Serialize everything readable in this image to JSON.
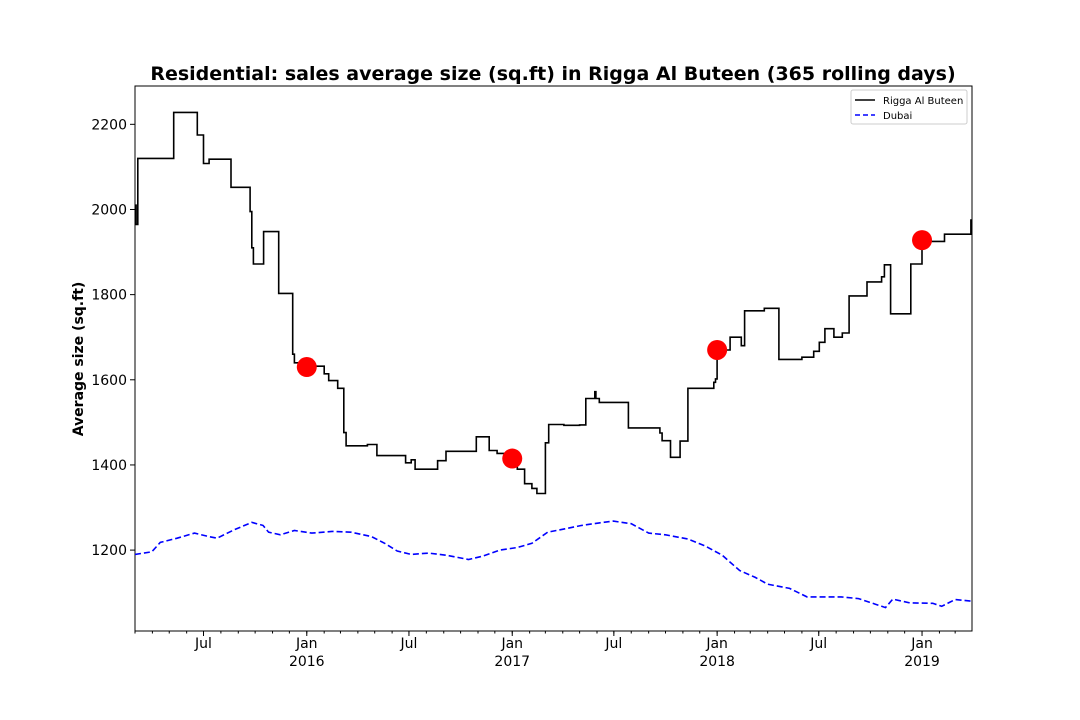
{
  "chart_data": {
    "type": "line",
    "title": "Residential: sales average size (sq.ft) in Rigga Al Buteen (365 rolling days)",
    "xlabel": "",
    "ylabel": "Average size (sq.ft)",
    "xlim": [
      "2015-03-01",
      "2019-03-31"
    ],
    "ylim": [
      1010,
      2290
    ],
    "yticks": [
      1200,
      1400,
      1600,
      1800,
      2000,
      2200
    ],
    "xticks": [
      {
        "date": "2015-07-01",
        "label": "Jul",
        "sublabel": ""
      },
      {
        "date": "2016-01-01",
        "label": "Jan",
        "sublabel": "2016"
      },
      {
        "date": "2016-07-01",
        "label": "Jul",
        "sublabel": ""
      },
      {
        "date": "2017-01-01",
        "label": "Jan",
        "sublabel": "2017"
      },
      {
        "date": "2017-07-01",
        "label": "Jul",
        "sublabel": ""
      },
      {
        "date": "2018-01-01",
        "label": "Jan",
        "sublabel": "2018"
      },
      {
        "date": "2018-07-01",
        "label": "Jul",
        "sublabel": ""
      },
      {
        "date": "2019-01-01",
        "label": "Jan",
        "sublabel": "2019"
      }
    ],
    "legend_position": "top-right",
    "grid": false,
    "series": [
      {
        "name": "Rigga Al Buteen",
        "color": "#000000",
        "style": "solid",
        "step": true,
        "points": [
          [
            "2015-03-01",
            2010
          ],
          [
            "2015-03-03",
            1965
          ],
          [
            "2015-03-06",
            2120
          ],
          [
            "2015-05-09",
            2228
          ],
          [
            "2015-06-20",
            2175
          ],
          [
            "2015-07-01",
            2108
          ],
          [
            "2015-07-11",
            2118
          ],
          [
            "2015-08-19",
            2052
          ],
          [
            "2015-09-22",
            1995
          ],
          [
            "2015-09-25",
            1910
          ],
          [
            "2015-09-28",
            1872
          ],
          [
            "2015-10-16",
            1948
          ],
          [
            "2015-11-12",
            1803
          ],
          [
            "2015-12-07",
            1660
          ],
          [
            "2015-12-10",
            1640
          ],
          [
            "2015-12-19",
            1632
          ],
          [
            "2016-02-01",
            1614
          ],
          [
            "2016-02-09",
            1598
          ],
          [
            "2016-02-25",
            1580
          ],
          [
            "2016-03-07",
            1476
          ],
          [
            "2016-03-11",
            1445
          ],
          [
            "2016-04-18",
            1448
          ],
          [
            "2016-05-05",
            1422
          ],
          [
            "2016-06-25",
            1405
          ],
          [
            "2016-07-05",
            1412
          ],
          [
            "2016-07-12",
            1390
          ],
          [
            "2016-08-21",
            1410
          ],
          [
            "2016-09-05",
            1432
          ],
          [
            "2016-10-29",
            1466
          ],
          [
            "2016-11-21",
            1434
          ],
          [
            "2016-12-05",
            1427
          ],
          [
            "2016-12-28",
            1414
          ],
          [
            "2017-01-10",
            1390
          ],
          [
            "2017-01-23",
            1356
          ],
          [
            "2017-02-05",
            1345
          ],
          [
            "2017-02-14",
            1333
          ],
          [
            "2017-03-01",
            1452
          ],
          [
            "2017-03-07",
            1495
          ],
          [
            "2017-04-03",
            1493
          ],
          [
            "2017-05-01",
            1494
          ],
          [
            "2017-05-12",
            1556
          ],
          [
            "2017-05-28",
            1572
          ],
          [
            "2017-05-30",
            1556
          ],
          [
            "2017-06-05",
            1547
          ],
          [
            "2017-07-27",
            1487
          ],
          [
            "2017-09-21",
            1475
          ],
          [
            "2017-09-25",
            1457
          ],
          [
            "2017-10-10",
            1418
          ],
          [
            "2017-10-27",
            1456
          ],
          [
            "2017-11-10",
            1580
          ],
          [
            "2017-12-26",
            1594
          ],
          [
            "2017-12-29",
            1602
          ],
          [
            "2018-01-01",
            1670
          ],
          [
            "2018-01-24",
            1700
          ],
          [
            "2018-02-13",
            1680
          ],
          [
            "2018-02-19",
            1762
          ],
          [
            "2018-03-26",
            1768
          ],
          [
            "2018-04-21",
            1648
          ],
          [
            "2018-06-01",
            1653
          ],
          [
            "2018-06-22",
            1667
          ],
          [
            "2018-07-02",
            1688
          ],
          [
            "2018-07-12",
            1720
          ],
          [
            "2018-07-28",
            1700
          ],
          [
            "2018-08-12",
            1710
          ],
          [
            "2018-08-24",
            1797
          ],
          [
            "2018-09-25",
            1830
          ],
          [
            "2018-10-21",
            1842
          ],
          [
            "2018-10-26",
            1870
          ],
          [
            "2018-11-06",
            1755
          ],
          [
            "2018-12-12",
            1872
          ],
          [
            "2019-01-01",
            1925
          ],
          [
            "2019-02-10",
            1942
          ],
          [
            "2019-03-29",
            1975
          ],
          [
            "2019-03-31",
            1975
          ]
        ]
      },
      {
        "name": "Dubai",
        "color": "#0000ff",
        "style": "dashed",
        "step": false,
        "points": [
          [
            "2015-03-01",
            1190
          ],
          [
            "2015-03-31",
            1196
          ],
          [
            "2015-04-15",
            1218
          ],
          [
            "2015-05-15",
            1228
          ],
          [
            "2015-06-15",
            1240
          ],
          [
            "2015-07-10",
            1232
          ],
          [
            "2015-07-25",
            1228
          ],
          [
            "2015-08-25",
            1248
          ],
          [
            "2015-09-25",
            1265
          ],
          [
            "2015-10-15",
            1258
          ],
          [
            "2015-10-25",
            1242
          ],
          [
            "2015-11-15",
            1236
          ],
          [
            "2015-12-10",
            1246
          ],
          [
            "2016-01-10",
            1240
          ],
          [
            "2016-02-15",
            1244
          ],
          [
            "2016-03-20",
            1242
          ],
          [
            "2016-04-25",
            1232
          ],
          [
            "2016-05-20",
            1215
          ],
          [
            "2016-06-10",
            1198
          ],
          [
            "2016-07-05",
            1190
          ],
          [
            "2016-08-05",
            1193
          ],
          [
            "2016-09-05",
            1188
          ],
          [
            "2016-10-15",
            1178
          ],
          [
            "2016-11-10",
            1186
          ],
          [
            "2016-12-10",
            1200
          ],
          [
            "2017-01-10",
            1206
          ],
          [
            "2017-02-05",
            1216
          ],
          [
            "2017-03-05",
            1242
          ],
          [
            "2017-04-05",
            1250
          ],
          [
            "2017-05-05",
            1258
          ],
          [
            "2017-06-05",
            1264
          ],
          [
            "2017-06-30",
            1268
          ],
          [
            "2017-08-01",
            1262
          ],
          [
            "2017-09-01",
            1240
          ],
          [
            "2017-10-01",
            1236
          ],
          [
            "2017-11-10",
            1226
          ],
          [
            "2017-12-10",
            1210
          ],
          [
            "2018-01-10",
            1188
          ],
          [
            "2018-02-10",
            1152
          ],
          [
            "2018-03-10",
            1136
          ],
          [
            "2018-04-01",
            1120
          ],
          [
            "2018-05-10",
            1110
          ],
          [
            "2018-06-10",
            1090
          ],
          [
            "2018-07-10",
            1090
          ],
          [
            "2018-08-10",
            1090
          ],
          [
            "2018-09-10",
            1086
          ],
          [
            "2018-10-10",
            1073
          ],
          [
            "2018-10-28",
            1065
          ],
          [
            "2018-11-10",
            1085
          ],
          [
            "2018-12-10",
            1076
          ],
          [
            "2019-01-20",
            1075
          ],
          [
            "2019-02-05",
            1068
          ],
          [
            "2019-03-01",
            1084
          ],
          [
            "2019-03-31",
            1080
          ]
        ]
      }
    ],
    "markers": {
      "color": "#ff0000",
      "points": [
        [
          "2016-01-01",
          1630
        ],
        [
          "2017-01-01",
          1415
        ],
        [
          "2018-01-01",
          1670
        ],
        [
          "2019-01-01",
          1928
        ]
      ]
    }
  }
}
